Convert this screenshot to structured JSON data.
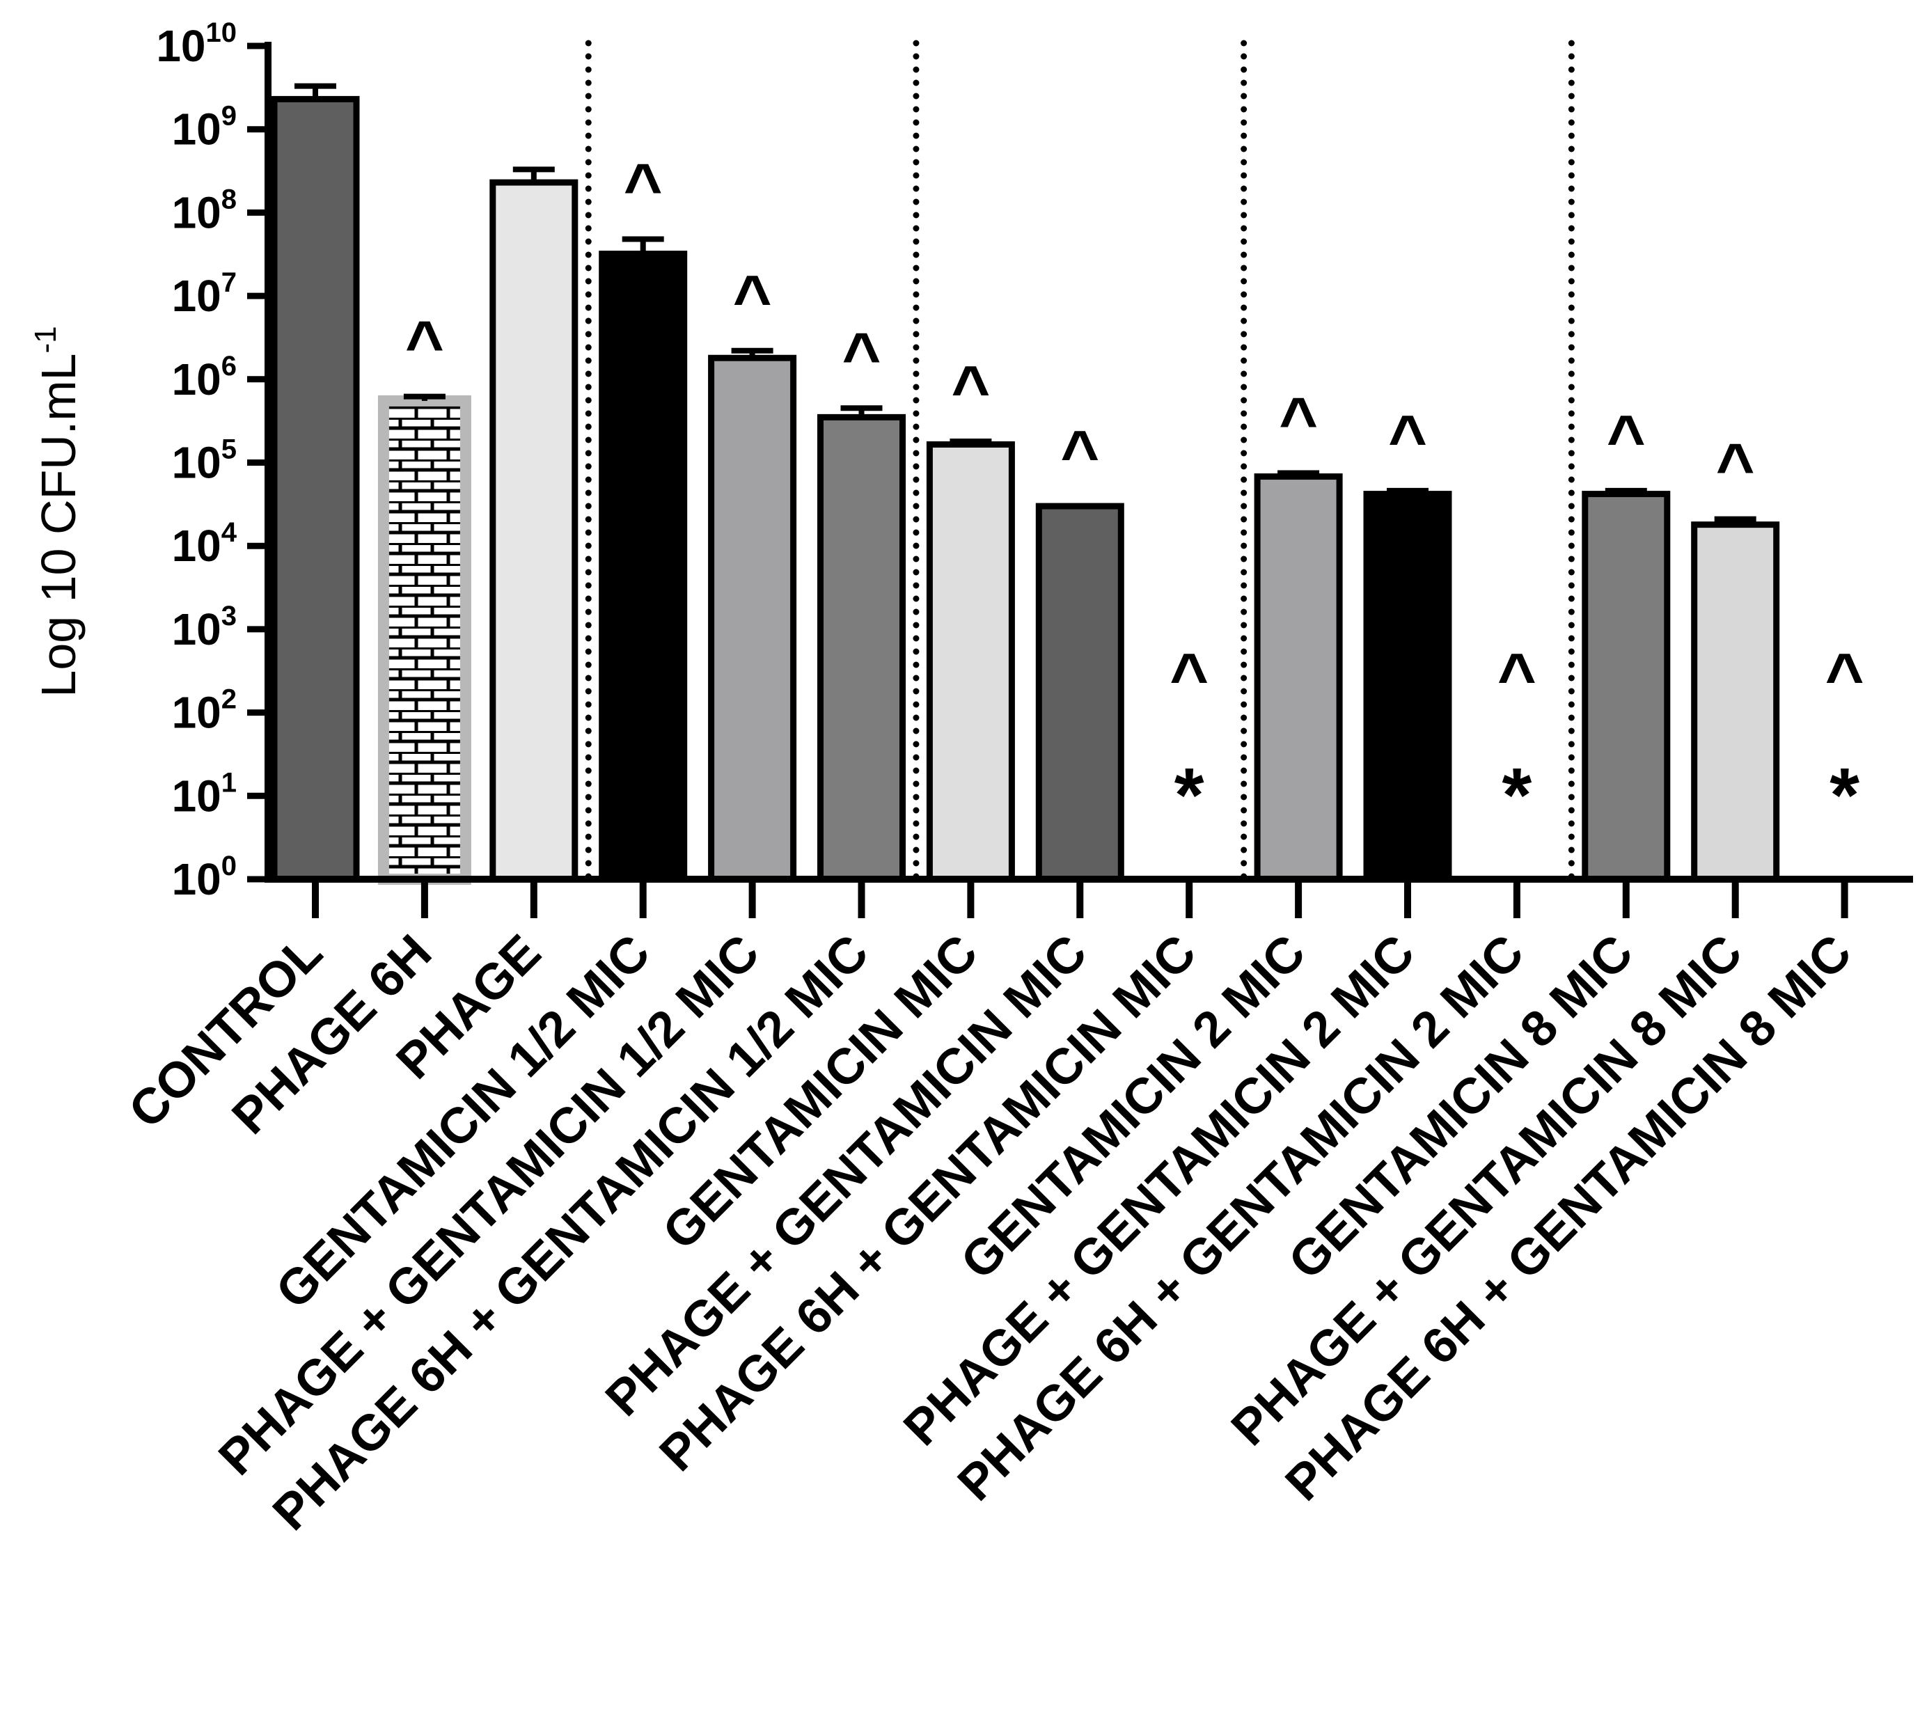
{
  "chart_data": {
    "type": "bar",
    "title": "",
    "xlabel": "",
    "ylabel": "Log 10 CFU.mL",
    "ylabel_superscript": "-1",
    "yscale": "log10",
    "ylim": [
      1,
      10000000000
    ],
    "y_tick_exponents": [
      0,
      1,
      2,
      3,
      4,
      5,
      6,
      7,
      8,
      9,
      10
    ],
    "y_tick_base": "10",
    "group_separators_after": [
      3,
      6,
      9,
      12
    ],
    "categories": [
      "CONTROL",
      "PHAGE 6H",
      "PHAGE",
      "GENTAMICIN 1/2 MIC",
      "PHAGE + GENTAMICIN 1/2 MIC",
      "PHAGE 6H + GENTAMICIN 1/2 MIC",
      "GENTAMICIN MIC",
      "PHAGE + GENTAMICIN MIC",
      "PHAGE 6H + GENTAMICIN MIC",
      "GENTAMICIN 2 MIC",
      "PHAGE + GENTAMICIN 2 MIC",
      "PHAGE 6H + GENTAMICIN 2 MIC",
      "GENTAMICIN 8 MIC",
      "PHAGE + GENTAMICIN 8 MIC",
      "PHAGE 6H + GENTAMICIN 8 MIC"
    ],
    "values": [
      2300000000,
      550000,
      230000000,
      32000000,
      1800000,
      350000,
      165000,
      30000,
      1,
      68000,
      42000,
      1,
      42000,
      18000,
      1
    ],
    "error_upper": [
      3300000000,
      620000,
      330000000,
      48000000,
      2200000,
      450000,
      180000,
      30000,
      null,
      75000,
      46000,
      null,
      46000,
      21000,
      null
    ],
    "fill_colors": [
      "#5f5f5f",
      "#b8b8b8",
      "#e6e6e6",
      "#000000",
      "#a2a2a4",
      "#7d7d7d",
      "#dedede",
      "#606060",
      "#ffffff",
      "#a2a2a4",
      "#000000",
      "#ffffff",
      "#7d7d7d",
      "#d8d8d8",
      "#ffffff"
    ],
    "fill_patterns": [
      "solid",
      "brick",
      "solid",
      "solid",
      "solid",
      "solid",
      "solid",
      "solid",
      "none",
      "solid",
      "solid",
      "none",
      "solid",
      "solid",
      "none"
    ],
    "annotations_top": [
      "",
      "^",
      "",
      "^",
      "^",
      "^",
      "^",
      "^",
      "^",
      "^",
      "^",
      "^",
      "^",
      "^",
      "^"
    ],
    "annotations_star": [
      "",
      "",
      "",
      "",
      "",
      "",
      "",
      "",
      "*",
      "",
      "",
      "*",
      "",
      "",
      "*"
    ]
  }
}
